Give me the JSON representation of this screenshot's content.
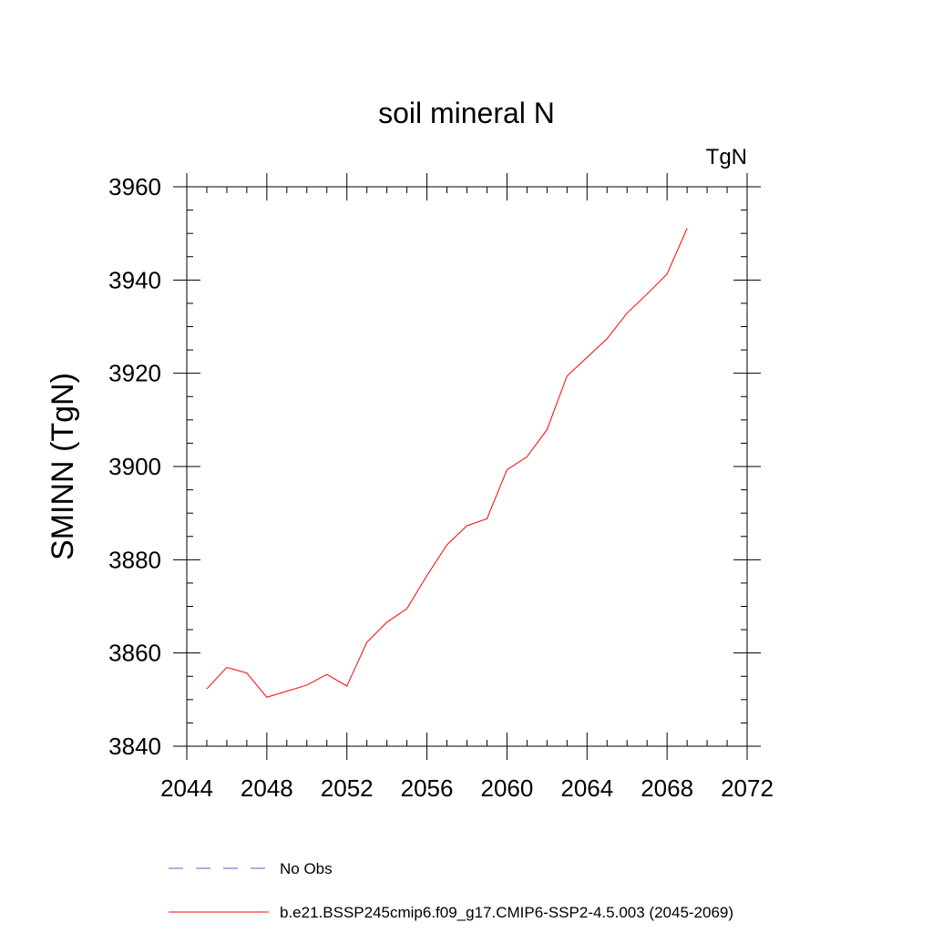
{
  "chart_data": {
    "type": "line",
    "title": "soil mineral N",
    "units": "TgN",
    "xlabel": "",
    "ylabel": "SMINN  (TgN)",
    "xlim": [
      2044,
      2072
    ],
    "ylim": [
      3840,
      3960
    ],
    "x_ticks": [
      2044,
      2048,
      2052,
      2056,
      2060,
      2064,
      2068,
      2072
    ],
    "y_ticks": [
      3840,
      3860,
      3880,
      3900,
      3920,
      3940,
      3960
    ],
    "x_minor_step": 1,
    "y_minor_step": 5,
    "grid": false,
    "series": [
      {
        "name": "b.e21.BSSP245cmip6.f09_g17.CMIP6-SSP2-4.5.003 (2045-2069)",
        "color": "#ff0000",
        "style": "solid",
        "x": [
          2045,
          2046,
          2047,
          2048,
          2049,
          2050,
          2051,
          2052,
          2053,
          2054,
          2055,
          2056,
          2057,
          2058,
          2059,
          2060,
          2061,
          2062,
          2063,
          2064,
          2065,
          2066,
          2067,
          2068,
          2069
        ],
        "values": [
          3852.3,
          3856.9,
          3855.7,
          3850.5,
          3851.8,
          3853.1,
          3855.4,
          3852.9,
          3862.3,
          3866.6,
          3869.5,
          3876.6,
          3883.2,
          3887.3,
          3888.8,
          3899.3,
          3902.1,
          3907.9,
          3919.4,
          3923.4,
          3927.4,
          3932.9,
          3937.0,
          3941.3,
          3951.1
        ]
      }
    ],
    "legend": [
      {
        "label": "No Obs",
        "color": "#6a5acd",
        "style": "dashed"
      },
      {
        "label": "b.e21.BSSP245cmip6.f09_g17.CMIP6-SSP2-4.5.003 (2045-2069)",
        "color": "#ff0000",
        "style": "solid"
      }
    ],
    "legend_position": "bottom"
  }
}
